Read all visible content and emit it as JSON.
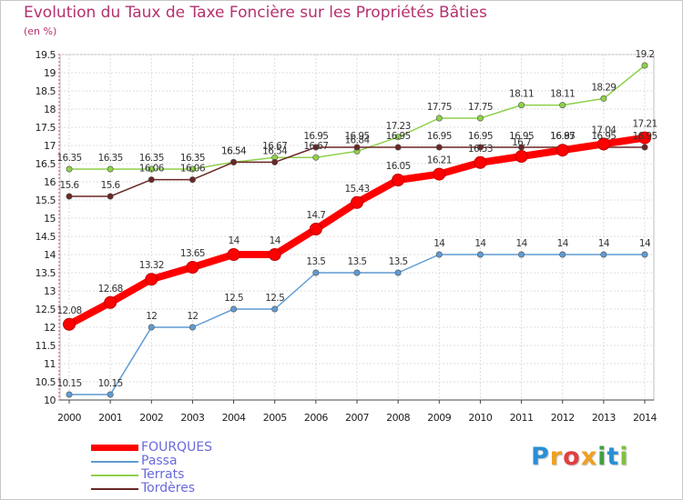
{
  "title": "Evolution du Taux de Taxe Foncière sur les Propriétés Bâties",
  "subtitle": "(en %)",
  "logo": {
    "text": "Proxiti",
    "letters": [
      "P",
      "r",
      "o",
      "x",
      "i",
      "t",
      "i"
    ],
    "colors": [
      "#2a8fd4",
      "#f0a020",
      "#e04040",
      "#f0a020",
      "#40a040",
      "#2a8fd4",
      "#80c040"
    ]
  },
  "chart_data": {
    "type": "line",
    "title": "Evolution du Taux de Taxe Foncière sur les Propriétés Bâties",
    "ylabel": "(en %)",
    "xlabel": "",
    "ylim": [
      10,
      19.5
    ],
    "yticks": [
      "10",
      "10.5",
      "11",
      "11.5",
      "12",
      "12.5",
      "13",
      "13.5",
      "14",
      "14.5",
      "15",
      "15.5",
      "16",
      "16.5",
      "17",
      "17.5",
      "18",
      "18.5",
      "19",
      "19.5"
    ],
    "categories": [
      "2000",
      "2001",
      "2002",
      "2003",
      "2004",
      "2005",
      "2006",
      "2007",
      "2008",
      "2009",
      "2010",
      "2011",
      "2012",
      "2013",
      "2014"
    ],
    "grid": true,
    "legend_position": "bottom-left",
    "series": [
      {
        "name": "Passa",
        "color": "#5f9bd3",
        "values": [
          10.15,
          10.15,
          12,
          12,
          12.5,
          12.5,
          13.5,
          13.5,
          13.5,
          14,
          14,
          14,
          14,
          14,
          14
        ],
        "labels": [
          "10.15",
          "10.15",
          "12",
          "12",
          "12.5",
          "12.5",
          "13.5",
          "13.5",
          "13.5",
          "14",
          "14",
          "14",
          "14",
          "14",
          "14"
        ]
      },
      {
        "name": "Terrats",
        "color": "#8ed14a",
        "values": [
          16.35,
          16.35,
          16.35,
          16.35,
          16.54,
          16.67,
          16.67,
          16.84,
          17.23,
          17.75,
          17.75,
          18.11,
          18.11,
          18.29,
          19.2
        ],
        "labels": [
          "16.35",
          "16.35",
          "16.35",
          "16.35",
          "16.54",
          "16.67",
          "16.67",
          "16.84",
          "17.23",
          "17.75",
          "17.75",
          "18.11",
          "18.11",
          "18.29",
          "19.2"
        ]
      },
      {
        "name": "Tordères",
        "color": "#6b2626",
        "values": [
          15.6,
          15.6,
          16.06,
          16.06,
          16.54,
          16.54,
          16.95,
          16.95,
          16.95,
          16.95,
          16.95,
          16.95,
          16.95,
          16.95,
          16.95
        ],
        "labels": [
          "15.6",
          "15.6",
          "16.06",
          "16.06",
          "16.54",
          "16.54",
          "16.95",
          "16.95",
          "16.95",
          "16.95",
          "16.95",
          "16.95",
          "16.95",
          "16.95",
          "16.95"
        ]
      },
      {
        "name": "FOURQUES",
        "color": "#ff0000",
        "values": [
          12.08,
          12.68,
          13.32,
          13.65,
          14,
          14,
          14.7,
          15.43,
          16.05,
          16.21,
          16.53,
          16.7,
          16.87,
          17.04,
          17.21
        ],
        "labels": [
          "12.08",
          "12.68",
          "13.32",
          "13.65",
          "14",
          "14",
          "14.7",
          "15.43",
          "16.05",
          "16.21",
          "16.53",
          "16.7",
          "16.87",
          "17.04",
          "17.21"
        ]
      }
    ],
    "legend": [
      "FOURQUES",
      "Passa",
      "Terrats",
      "Tordères"
    ]
  }
}
